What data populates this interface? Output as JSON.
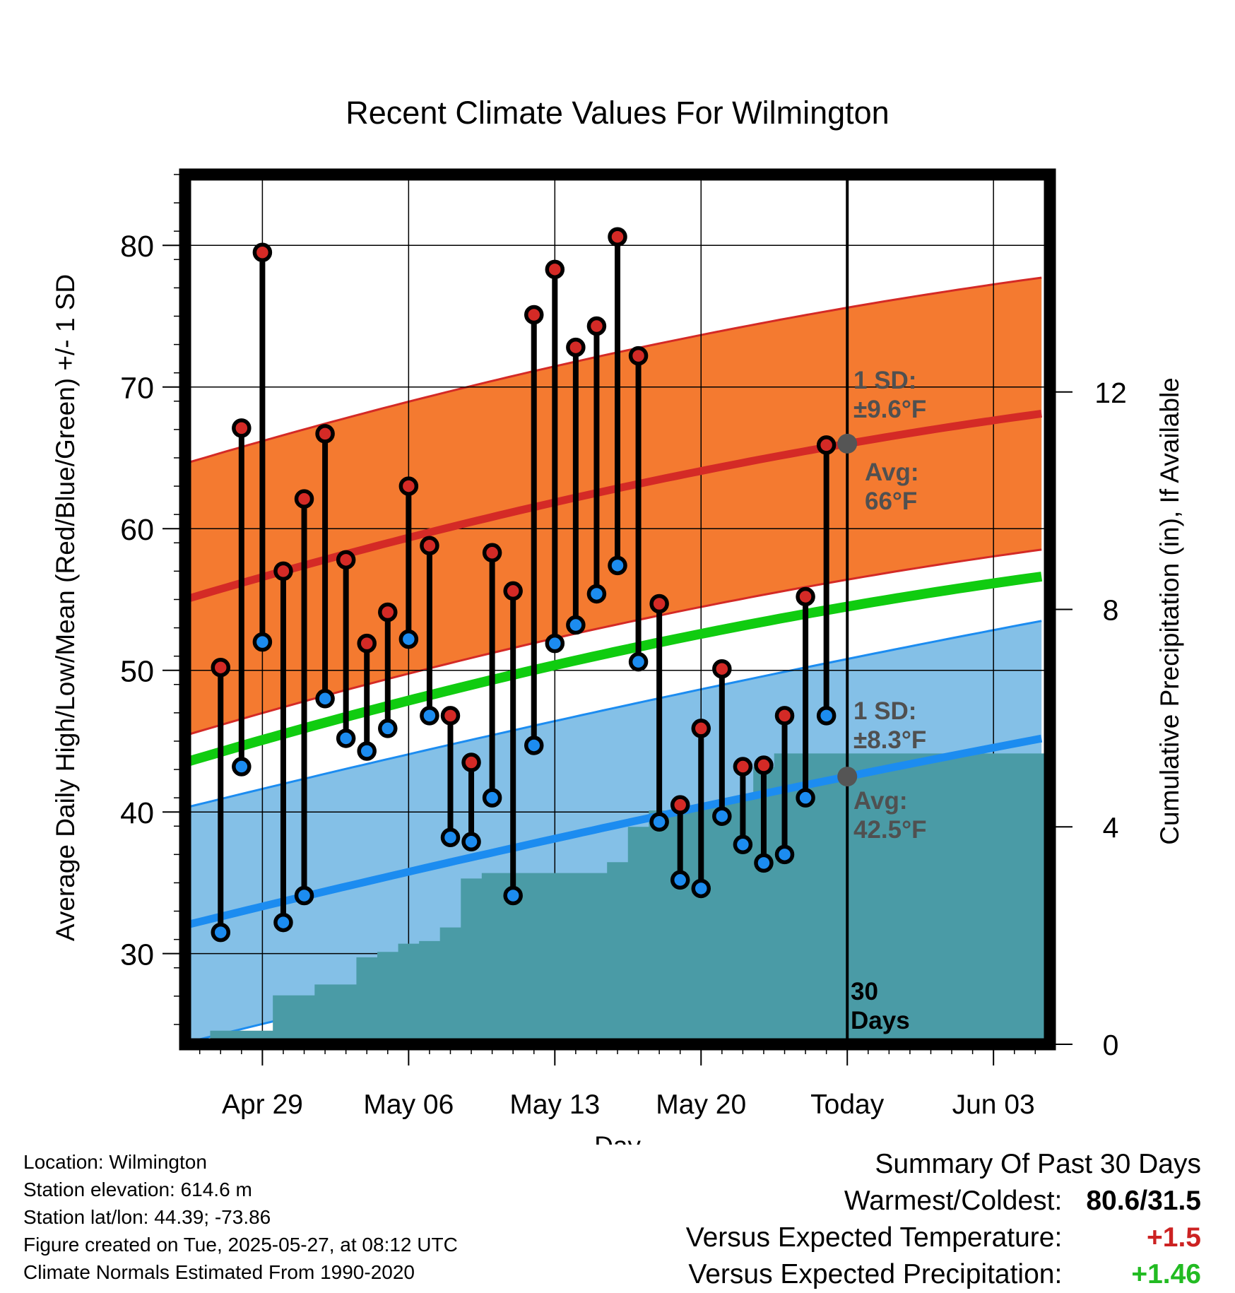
{
  "chart_data": {
    "type": "line",
    "title": "Recent Climate Values For Wilmington",
    "xlabel": "Day",
    "ylabel_left": "Average Daily High/Low/Mean (Red/Blue/Green) +/- 1 SD",
    "ylabel_right": "Cumulative Precipitation (in), If Available",
    "x_tick_labels": [
      "Apr 29",
      "May 06",
      "May 13",
      "May 20",
      "Today",
      "Jun 03"
    ],
    "y_ticks_left": [
      "30",
      "40",
      "50",
      "60",
      "70",
      "80"
    ],
    "y_ticks_right": [
      "0",
      "4",
      "8",
      "12"
    ],
    "ylim_left": [
      23.6,
      85
    ],
    "ylim_right": [
      0,
      16
    ],
    "x_range_days": [
      -31.7,
      9.7
    ],
    "daily_high": [
      50.2,
      67.1,
      79.5,
      57.0,
      62.1,
      66.7,
      57.8,
      51.9,
      54.1,
      63.0,
      58.8,
      46.8,
      43.5,
      58.3,
      55.6,
      75.1,
      78.3,
      72.8,
      74.3,
      80.6,
      72.2,
      54.7,
      40.5,
      45.9,
      50.1,
      43.2,
      43.3,
      46.8,
      55.2,
      65.9
    ],
    "daily_low": [
      31.5,
      43.2,
      52.0,
      32.2,
      34.1,
      48.0,
      45.2,
      44.3,
      45.9,
      52.2,
      46.8,
      38.2,
      37.9,
      41.0,
      34.1,
      44.7,
      51.9,
      53.2,
      55.4,
      57.4,
      50.6,
      39.3,
      35.2,
      34.6,
      39.7,
      37.7,
      36.4,
      37.0,
      41.0,
      46.8
    ],
    "normal_high": {
      "start": 55.0,
      "today": 66.0,
      "end": 68.2
    },
    "normal_low": {
      "start": 32.0,
      "today": 42.5,
      "end": 45.3
    },
    "normal_mean": {
      "start": 43.5,
      "today": 54.5,
      "end": 56.7
    },
    "cumulative_precip": [
      0.25,
      0.25,
      0.25,
      0.9,
      0.9,
      1.1,
      1.1,
      1.6,
      1.7,
      1.85,
      1.9,
      2.15,
      3.05,
      3.15,
      3.15,
      3.15,
      3.15,
      3.15,
      3.15,
      3.35,
      4.0,
      4.3,
      4.3,
      4.4,
      4.45,
      4.55,
      5.1,
      5.35,
      5.35,
      5.35
    ],
    "annotations": [
      {
        "label": "1 SD:",
        "value": "±9.6°F"
      },
      {
        "label": "Avg:",
        "value": "66°F"
      },
      {
        "label": "1 SD:",
        "value": "±8.3°F"
      },
      {
        "label": "Avg:",
        "value": "42.5°F"
      },
      {
        "label": "30",
        "value": "Days"
      }
    ],
    "colors": {
      "high_band": "#f47a30",
      "high_line": "#d42a26",
      "low_band": "#84c0e7",
      "low_line": "#1c8cf0",
      "mean_line": "#10cc10",
      "precip": "#4a9ba6",
      "high_dot": "#d42a26",
      "low_dot": "#1c8cf0",
      "today_dot": "#555555"
    }
  },
  "footer": {
    "location": "Location: Wilmington",
    "elevation": "Station elevation: 614.6 m",
    "latlon": "Station lat/lon: 44.39; -73.86",
    "created": "Figure created on Tue, 2025-05-27, at 08:12 UTC",
    "normals": "Climate Normals Estimated From 1990-2020"
  },
  "summary": {
    "title": "Summary Of Past 30 Days",
    "warmest_label": "Warmest/Coldest:",
    "warmest_value": "80.6/31.5",
    "temp_label": "Versus Expected Temperature:",
    "temp_value": "+1.5",
    "precip_label": "Versus Expected Precipitation:",
    "precip_value": "+1.46"
  }
}
